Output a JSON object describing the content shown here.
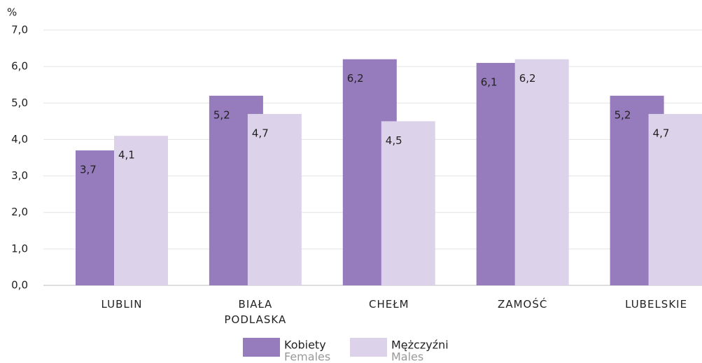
{
  "chart_data": {
    "type": "bar",
    "y_label": "%",
    "categories": [
      "LUBLIN",
      "BIAŁA PODLASKA",
      "CHEŁM",
      "ZAMOŚĆ",
      "LUBELSKIE"
    ],
    "series": [
      {
        "name": "Kobiety",
        "name_en": "Females",
        "color": "#967bbd",
        "values": [
          3.7,
          5.2,
          6.2,
          6.1,
          5.2
        ],
        "value_labels": [
          "3,7",
          "5,2",
          "6,2",
          "6,1",
          "5,2"
        ]
      },
      {
        "name": "Mężczyźni",
        "name_en": "Males",
        "color": "#dcd3ea",
        "values": [
          4.1,
          4.7,
          4.5,
          6.2,
          4.7
        ],
        "value_labels": [
          "4,1",
          "4,7",
          "4,5",
          "6,2",
          "4,7"
        ]
      }
    ],
    "ylim": [
      0,
      7
    ],
    "yticks": [
      {
        "value": 0,
        "label": "0,0"
      },
      {
        "value": 1,
        "label": "1,0"
      },
      {
        "value": 2,
        "label": "2,0"
      },
      {
        "value": 3,
        "label": "3,0"
      },
      {
        "value": 4,
        "label": "4,0"
      },
      {
        "value": 5,
        "label": "5,0"
      },
      {
        "value": 6,
        "label": "6,0"
      },
      {
        "value": 7,
        "label": "7,0"
      }
    ],
    "grid": true
  }
}
